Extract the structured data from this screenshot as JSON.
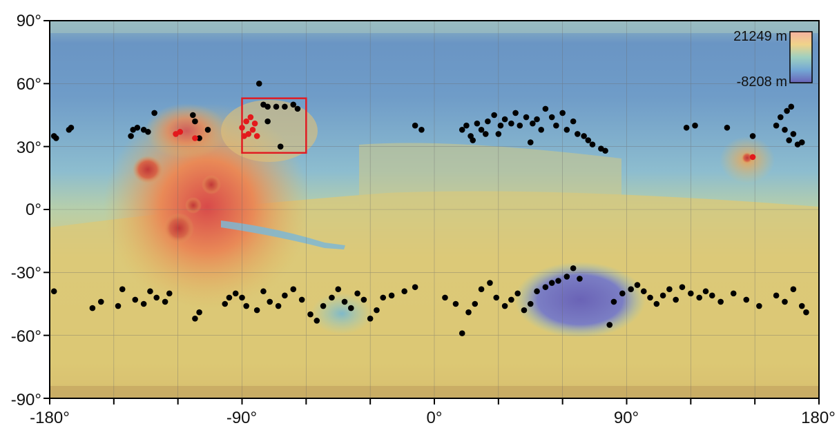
{
  "map": {
    "x_ticks": [
      "-180°",
      "-90°",
      "0°",
      "90°",
      "180°"
    ],
    "y_ticks": [
      "90°",
      "60°",
      "30°",
      "0°",
      "-30°",
      "-60°",
      "-90°"
    ],
    "legend": {
      "max_label": "21249 m",
      "min_label": "-8208 m"
    },
    "colors": {
      "marker": "#000000",
      "highlight": "#e3191c",
      "box": "#e11b22"
    },
    "highlight_box": {
      "lon": [
        -90,
        -60
      ],
      "lat": [
        27,
        53
      ]
    },
    "black_points": [
      [
        -178,
        35
      ],
      [
        -177,
        34
      ],
      [
        -171,
        38
      ],
      [
        -170,
        39
      ],
      [
        -142,
        35
      ],
      [
        -141,
        38
      ],
      [
        -139,
        39
      ],
      [
        -136,
        38
      ],
      [
        -134,
        37
      ],
      [
        -131,
        46
      ],
      [
        -113,
        45
      ],
      [
        -112,
        42
      ],
      [
        -106,
        38
      ],
      [
        -110,
        34
      ],
      [
        -82,
        60
      ],
      [
        -80,
        50
      ],
      [
        -78,
        49
      ],
      [
        -74,
        49
      ],
      [
        -70,
        49
      ],
      [
        -66,
        50
      ],
      [
        -64,
        48
      ],
      [
        -78,
        42
      ],
      [
        -72,
        30
      ],
      [
        -9,
        40
      ],
      [
        -6,
        38
      ],
      [
        13,
        38
      ],
      [
        15,
        40
      ],
      [
        17,
        35
      ],
      [
        20,
        41
      ],
      [
        22,
        38
      ],
      [
        25,
        42
      ],
      [
        28,
        45
      ],
      [
        24,
        36
      ],
      [
        31,
        40
      ],
      [
        33,
        43
      ],
      [
        36,
        41
      ],
      [
        38,
        46
      ],
      [
        40,
        40
      ],
      [
        43,
        44
      ],
      [
        46,
        41
      ],
      [
        48,
        43
      ],
      [
        50,
        38
      ],
      [
        52,
        48
      ],
      [
        55,
        44
      ],
      [
        57,
        40
      ],
      [
        60,
        46
      ],
      [
        62,
        38
      ],
      [
        65,
        42
      ],
      [
        67,
        36
      ],
      [
        70,
        35
      ],
      [
        72,
        33
      ],
      [
        74,
        31
      ],
      [
        78,
        29
      ],
      [
        80,
        28
      ],
      [
        45,
        32
      ],
      [
        30,
        36
      ],
      [
        18,
        33
      ],
      [
        118,
        39
      ],
      [
        122,
        40
      ],
      [
        137,
        39
      ],
      [
        149,
        35
      ],
      [
        160,
        40
      ],
      [
        162,
        44
      ],
      [
        164,
        38
      ],
      [
        166,
        33
      ],
      [
        168,
        36
      ],
      [
        170,
        31
      ],
      [
        172,
        32
      ],
      [
        165,
        47
      ],
      [
        167,
        49
      ],
      [
        -178,
        -39
      ],
      [
        -160,
        -47
      ],
      [
        -156,
        -44
      ],
      [
        -148,
        -46
      ],
      [
        -146,
        -38
      ],
      [
        -140,
        -43
      ],
      [
        -136,
        -45
      ],
      [
        -133,
        -39
      ],
      [
        -130,
        -42
      ],
      [
        -126,
        -44
      ],
      [
        -124,
        -40
      ],
      [
        -112,
        -52
      ],
      [
        -110,
        -49
      ],
      [
        -98,
        -45
      ],
      [
        -96,
        -42
      ],
      [
        -93,
        -40
      ],
      [
        -90,
        -42
      ],
      [
        -88,
        -46
      ],
      [
        -83,
        -48
      ],
      [
        -80,
        -39
      ],
      [
        -77,
        -44
      ],
      [
        -73,
        -46
      ],
      [
        -70,
        -41
      ],
      [
        -66,
        -38
      ],
      [
        -62,
        -43
      ],
      [
        -58,
        -50
      ],
      [
        -55,
        -53
      ],
      [
        -52,
        -46
      ],
      [
        -48,
        -42
      ],
      [
        -45,
        -38
      ],
      [
        -42,
        -44
      ],
      [
        -39,
        -47
      ],
      [
        -36,
        -40
      ],
      [
        -33,
        -43
      ],
      [
        -30,
        -52
      ],
      [
        -27,
        -48
      ],
      [
        -24,
        -42
      ],
      [
        -20,
        -41
      ],
      [
        -14,
        -39
      ],
      [
        -9,
        -37
      ],
      [
        5,
        -42
      ],
      [
        10,
        -45
      ],
      [
        13,
        -59
      ],
      [
        16,
        -49
      ],
      [
        19,
        -45
      ],
      [
        22,
        -38
      ],
      [
        26,
        -35
      ],
      [
        29,
        -42
      ],
      [
        33,
        -46
      ],
      [
        36,
        -43
      ],
      [
        39,
        -40
      ],
      [
        42,
        -48
      ],
      [
        45,
        -45
      ],
      [
        48,
        -39
      ],
      [
        52,
        -37
      ],
      [
        55,
        -35
      ],
      [
        58,
        -34
      ],
      [
        62,
        -32
      ],
      [
        65,
        -28
      ],
      [
        68,
        -33
      ],
      [
        82,
        -55
      ],
      [
        84,
        -44
      ],
      [
        88,
        -40
      ],
      [
        92,
        -38
      ],
      [
        95,
        -36
      ],
      [
        98,
        -39
      ],
      [
        101,
        -42
      ],
      [
        104,
        -45
      ],
      [
        107,
        -41
      ],
      [
        110,
        -38
      ],
      [
        113,
        -43
      ],
      [
        116,
        -37
      ],
      [
        120,
        -40
      ],
      [
        124,
        -42
      ],
      [
        127,
        -39
      ],
      [
        130,
        -41
      ],
      [
        134,
        -44
      ],
      [
        140,
        -40
      ],
      [
        146,
        -43
      ],
      [
        152,
        -46
      ],
      [
        160,
        -41
      ],
      [
        164,
        -44
      ],
      [
        168,
        -38
      ],
      [
        172,
        -46
      ],
      [
        174,
        -49
      ]
    ],
    "red_points": [
      [
        -121,
        36
      ],
      [
        -119,
        37
      ],
      [
        -112,
        34
      ],
      [
        -90,
        39
      ],
      [
        -88,
        42
      ],
      [
        -86,
        44
      ],
      [
        -85,
        38
      ],
      [
        -84,
        41
      ],
      [
        -87,
        36
      ],
      [
        -83,
        35
      ],
      [
        -89,
        35
      ],
      [
        149,
        25
      ]
    ]
  }
}
